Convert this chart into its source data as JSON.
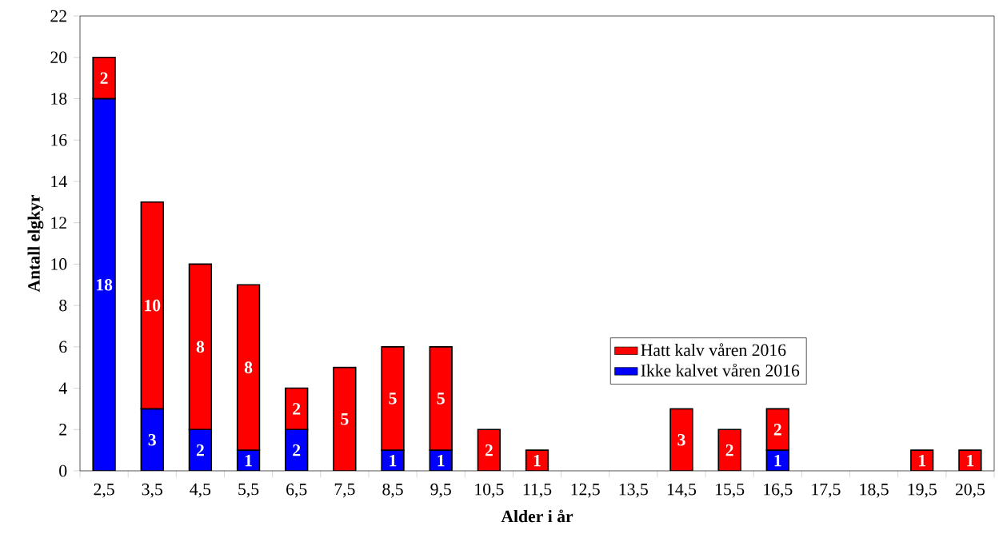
{
  "chart_data": {
    "type": "bar",
    "xlabel": "Alder i år",
    "ylabel": "Antall elgkyr",
    "categories": [
      "2,5",
      "3,5",
      "4,5",
      "5,5",
      "6,5",
      "7,5",
      "8,5",
      "9,5",
      "10,5",
      "11,5",
      "12,5",
      "13,5",
      "14,5",
      "15,5",
      "16,5",
      "17,5",
      "18,5",
      "19,5",
      "20,5"
    ],
    "series": [
      {
        "name": "Ikke kalvet våren 2016",
        "color": "#0000ff",
        "values": [
          18,
          3,
          2,
          1,
          2,
          null,
          1,
          1,
          null,
          null,
          null,
          null,
          null,
          null,
          1,
          null,
          null,
          null,
          null
        ]
      },
      {
        "name": "Hatt kalv våren 2016",
        "color": "#ff0000",
        "values": [
          2,
          10,
          8,
          8,
          2,
          5,
          5,
          5,
          2,
          1,
          null,
          null,
          3,
          2,
          2,
          null,
          null,
          1,
          1
        ]
      }
    ],
    "stacked": true,
    "data_labels": true,
    "legend": "right",
    "ylim": [
      0,
      22
    ],
    "yticks": [
      0,
      2,
      4,
      6,
      8,
      10,
      12,
      14,
      16,
      18,
      20,
      22
    ]
  }
}
